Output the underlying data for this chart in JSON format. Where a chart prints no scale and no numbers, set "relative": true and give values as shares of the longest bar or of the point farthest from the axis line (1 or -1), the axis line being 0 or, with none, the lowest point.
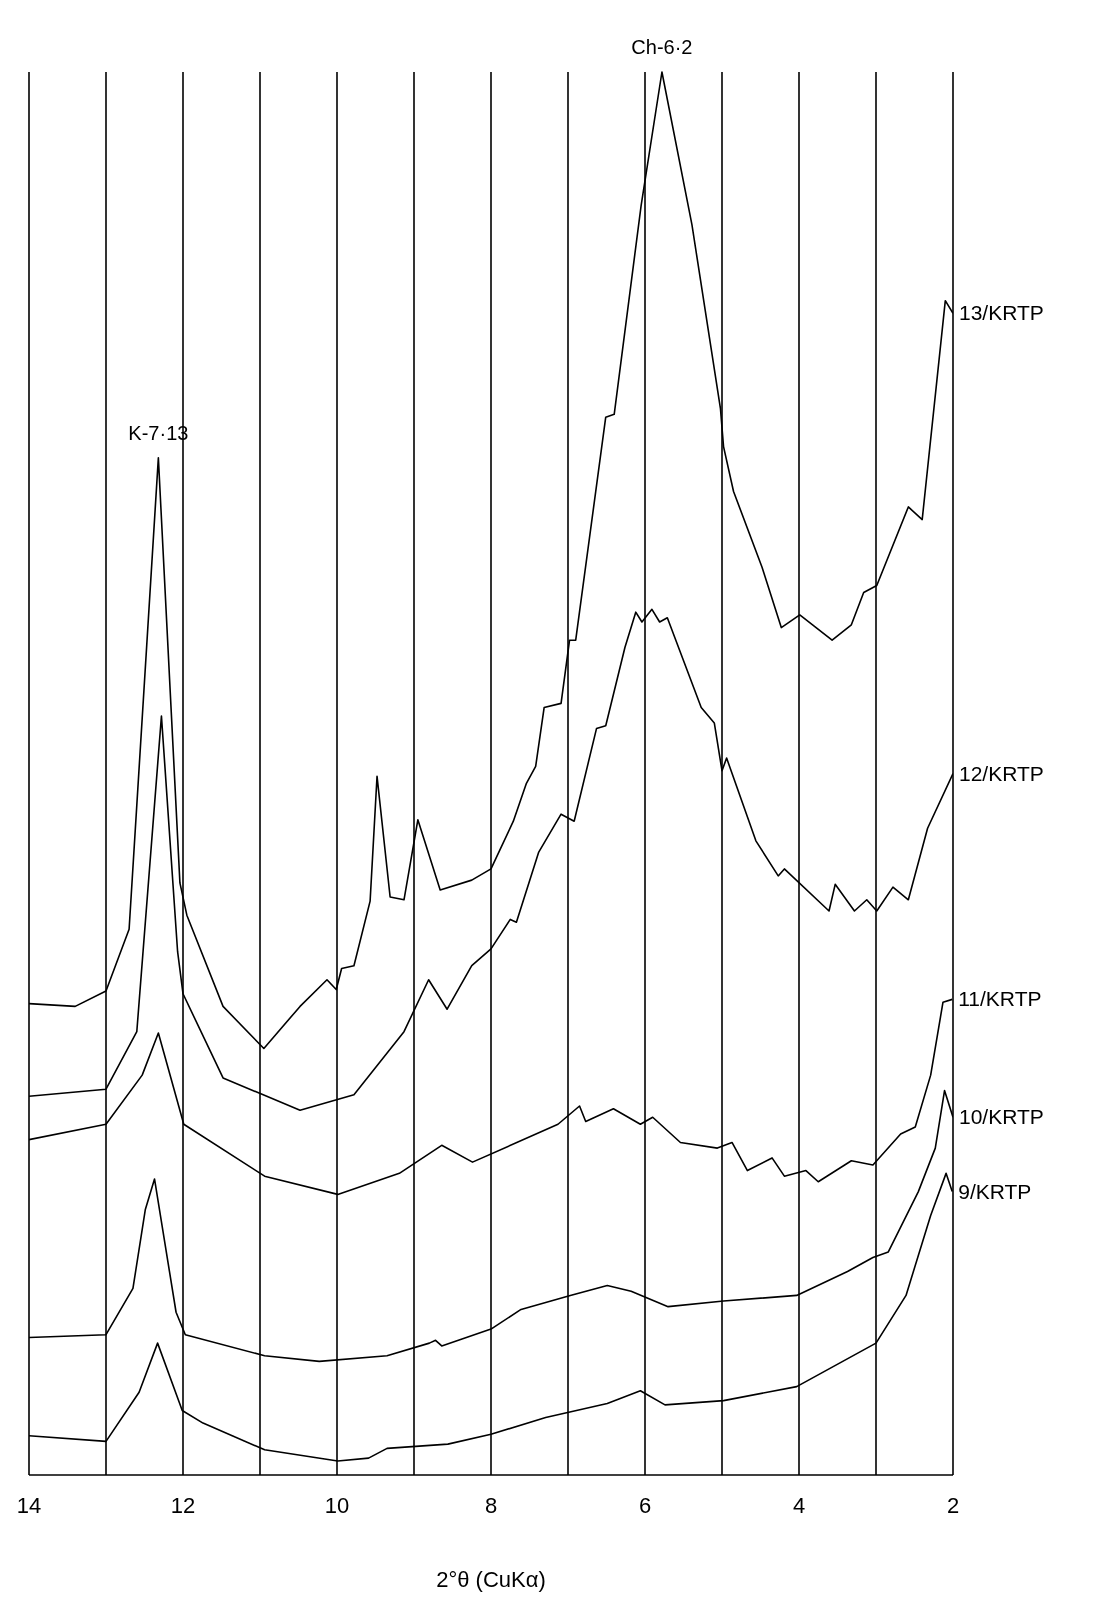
{
  "chart_data": {
    "type": "line",
    "relative": true,
    "xlabel": "2°θ (CuKα)",
    "xlim": [
      14,
      2
    ],
    "xticks": [
      14,
      {
        "value": 13,
        "label": null
      },
      12,
      {
        "value": 11,
        "label": null
      },
      10,
      {
        "value": 9,
        "label": null
      },
      8,
      {
        "value": 7,
        "label": null
      },
      6,
      {
        "value": 5,
        "label": null
      },
      4,
      {
        "value": 3,
        "label": null
      },
      2
    ],
    "grid": "x",
    "legend": false,
    "annotations": [
      {
        "text": "K-7·13",
        "x": 12.32,
        "y": 0.725
      },
      {
        "text": "Ch-6·2",
        "x": 5.78,
        "y": 1.0
      }
    ],
    "series": [
      {
        "name": "13/KRTP",
        "color": "#000000",
        "x": [
          14,
          13.4,
          13,
          12.7,
          12.32,
          12.04,
          11.95,
          11.48,
          10.95,
          10.48,
          10.13,
          10.01,
          9.94,
          9.78,
          9.57,
          9.48,
          9.31,
          9.13,
          8.95,
          8.66,
          8.25,
          8.0,
          7.71,
          7.54,
          7.42,
          7.31,
          7.09,
          6.98,
          6.9,
          6.51,
          6.4,
          6.05,
          5.78,
          5.39,
          5.02,
          4.98,
          4.85,
          4.48,
          4.23,
          3.99,
          3.57,
          3.32,
          3.16,
          2.99,
          2.58,
          2.4,
          2.1,
          2.0
        ],
        "values": [
          0.336,
          0.334,
          0.345,
          0.389,
          0.725,
          0.422,
          0.399,
          0.334,
          0.304,
          0.334,
          0.353,
          0.346,
          0.361,
          0.363,
          0.409,
          0.498,
          0.412,
          0.41,
          0.467,
          0.417,
          0.424,
          0.432,
          0.466,
          0.493,
          0.505,
          0.547,
          0.55,
          0.595,
          0.595,
          0.754,
          0.756,
          0.905,
          1.0,
          0.891,
          0.76,
          0.733,
          0.701,
          0.647,
          0.604,
          0.613,
          0.595,
          0.606,
          0.629,
          0.634,
          0.69,
          0.681,
          0.837,
          0.828
        ]
      },
      {
        "name": "12/KRTP",
        "color": "#000000",
        "x": [
          14,
          13,
          12.6,
          12.28,
          12.07,
          12.0,
          11.48,
          10.48,
          9.78,
          9.13,
          8.81,
          8.57,
          8.25,
          8.0,
          7.75,
          7.67,
          7.38,
          7.09,
          6.92,
          6.63,
          6.51,
          6.26,
          6.12,
          6.04,
          5.91,
          5.81,
          5.71,
          5.27,
          5.1,
          5.0,
          4.94,
          4.56,
          4.27,
          4.19,
          3.61,
          3.53,
          3.28,
          3.12,
          2.99,
          2.78,
          2.58,
          2.33,
          2.0
        ],
        "values": [
          0.27,
          0.275,
          0.316,
          0.541,
          0.373,
          0.343,
          0.283,
          0.26,
          0.271,
          0.316,
          0.353,
          0.332,
          0.363,
          0.375,
          0.396,
          0.394,
          0.444,
          0.471,
          0.466,
          0.532,
          0.534,
          0.59,
          0.615,
          0.608,
          0.617,
          0.608,
          0.611,
          0.547,
          0.536,
          0.502,
          0.511,
          0.452,
          0.427,
          0.432,
          0.402,
          0.421,
          0.402,
          0.41,
          0.402,
          0.419,
          0.41,
          0.461,
          0.5
        ]
      },
      {
        "name": "11/KRTP",
        "color": "#000000",
        "x": [
          14,
          13,
          12.53,
          12.32,
          11.99,
          10.94,
          9.99,
          9.19,
          8.64,
          8.24,
          7.13,
          6.85,
          6.77,
          6.41,
          6.06,
          5.9,
          5.54,
          5.06,
          4.87,
          4.67,
          4.35,
          4.19,
          3.91,
          3.75,
          3.32,
          3.04,
          2.68,
          2.49,
          2.29,
          2.13,
          2.01
        ],
        "values": [
          0.239,
          0.25,
          0.285,
          0.315,
          0.25,
          0.213,
          0.2,
          0.215,
          0.235,
          0.223,
          0.25,
          0.263,
          0.252,
          0.261,
          0.25,
          0.255,
          0.237,
          0.233,
          0.237,
          0.217,
          0.226,
          0.213,
          0.217,
          0.209,
          0.224,
          0.221,
          0.243,
          0.248,
          0.285,
          0.337,
          0.339
        ]
      },
      {
        "name": "10/KRTP",
        "color": "#000000",
        "x": [
          14,
          13,
          12.65,
          12.49,
          12.37,
          12.09,
          11.97,
          10.94,
          10.23,
          9.35,
          8.8,
          8.72,
          8.64,
          8.0,
          7.61,
          6.97,
          6.49,
          6.18,
          5.7,
          4.98,
          4.03,
          3.37,
          3.04,
          2.84,
          2.45,
          2.23,
          2.11,
          2.0
        ],
        "values": [
          0.098,
          0.1,
          0.133,
          0.189,
          0.211,
          0.116,
          0.1,
          0.085,
          0.081,
          0.085,
          0.094,
          0.096,
          0.092,
          0.104,
          0.118,
          0.128,
          0.135,
          0.131,
          0.12,
          0.124,
          0.128,
          0.145,
          0.155,
          0.159,
          0.202,
          0.233,
          0.274,
          0.255
        ]
      },
      {
        "name": "9/KRTP",
        "color": "#000000",
        "x": [
          14,
          13,
          12.57,
          12.33,
          12.01,
          11.74,
          10.94,
          9.99,
          9.59,
          9.35,
          8.56,
          8.0,
          7.29,
          6.49,
          6.06,
          5.74,
          4.98,
          4.03,
          3.0,
          2.61,
          2.29,
          2.09,
          2.01
        ],
        "values": [
          0.028,
          0.024,
          0.059,
          0.094,
          0.046,
          0.037,
          0.018,
          0.01,
          0.012,
          0.019,
          0.022,
          0.029,
          0.041,
          0.051,
          0.06,
          0.05,
          0.053,
          0.063,
          0.094,
          0.128,
          0.185,
          0.215,
          0.202
        ]
      }
    ]
  }
}
